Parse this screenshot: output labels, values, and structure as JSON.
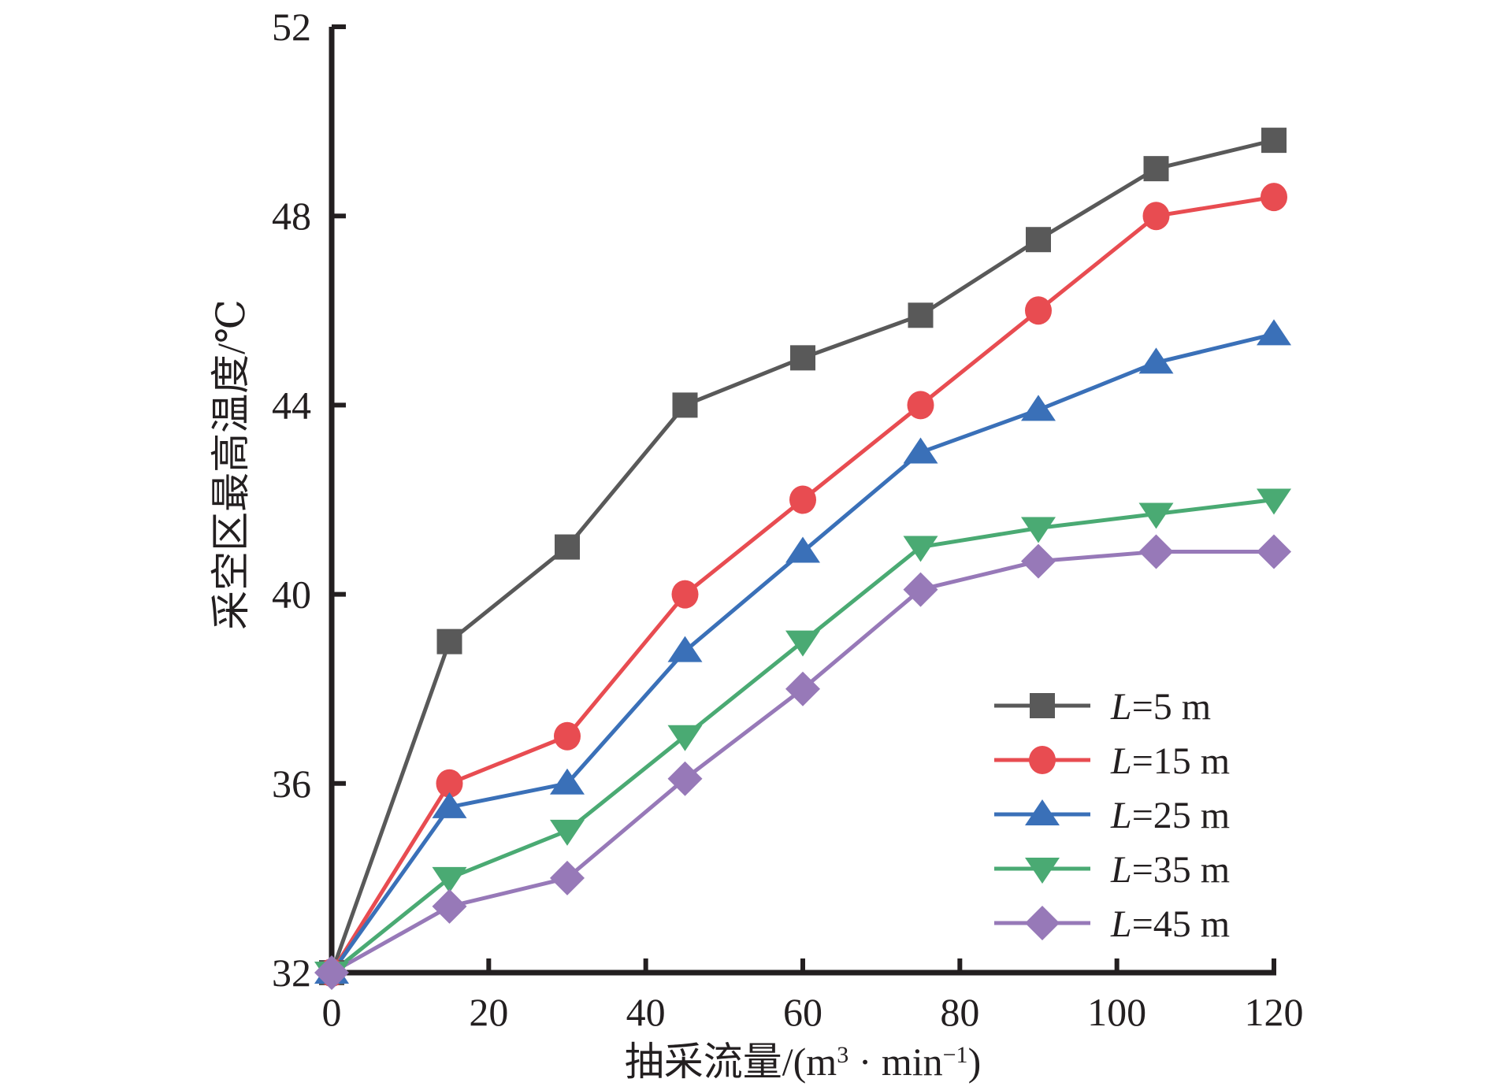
{
  "chart_data": {
    "type": "line",
    "title": "",
    "xlabel": "抽采流量/(m³・min⁻¹)",
    "xlabel_parts": {
      "main": "抽采流量/(m",
      "sup1": "3",
      "mid": " · min",
      "sup2": "−1",
      "end": ")"
    },
    "ylabel": "采空区最高温度/℃",
    "x": [
      0,
      15,
      30,
      45,
      60,
      75,
      90,
      105,
      120
    ],
    "xlim": [
      0,
      120
    ],
    "ylim": [
      32,
      52
    ],
    "xticks": [
      0,
      20,
      40,
      60,
      80,
      100,
      120
    ],
    "yticks": [
      32,
      36,
      40,
      44,
      48,
      52
    ],
    "grid": false,
    "legend_position": "bottom-right",
    "series": [
      {
        "name": "L=5 m",
        "var": "L",
        "rest": "=5 m",
        "marker": "square",
        "color": "#595959",
        "values": [
          32,
          39.0,
          41.0,
          44.0,
          45.0,
          45.9,
          47.5,
          49.0,
          49.6
        ]
      },
      {
        "name": "L=15 m",
        "var": "L",
        "rest": "=15 m",
        "marker": "circle",
        "color": "#e84c51",
        "values": [
          32,
          36.0,
          37.0,
          40.0,
          42.0,
          44.0,
          46.0,
          48.0,
          48.4
        ]
      },
      {
        "name": "L=25 m",
        "var": "L",
        "rest": "=25 m",
        "marker": "triangle-up",
        "color": "#3a70b8",
        "values": [
          32,
          35.5,
          36.0,
          38.8,
          40.9,
          43.0,
          43.9,
          44.9,
          45.5
        ]
      },
      {
        "name": "L=35 m",
        "var": "L",
        "rest": "=35 m",
        "marker": "triangle-down",
        "color": "#4aaa73",
        "values": [
          32,
          34.0,
          35.0,
          37.0,
          39.0,
          41.0,
          41.4,
          41.7,
          42.0
        ]
      },
      {
        "name": "L=45 m",
        "var": "L",
        "rest": "=45 m",
        "marker": "diamond",
        "color": "#9779b8",
        "values": [
          32,
          33.4,
          34.0,
          36.1,
          38.0,
          40.1,
          40.7,
          40.9,
          40.9
        ]
      }
    ]
  }
}
